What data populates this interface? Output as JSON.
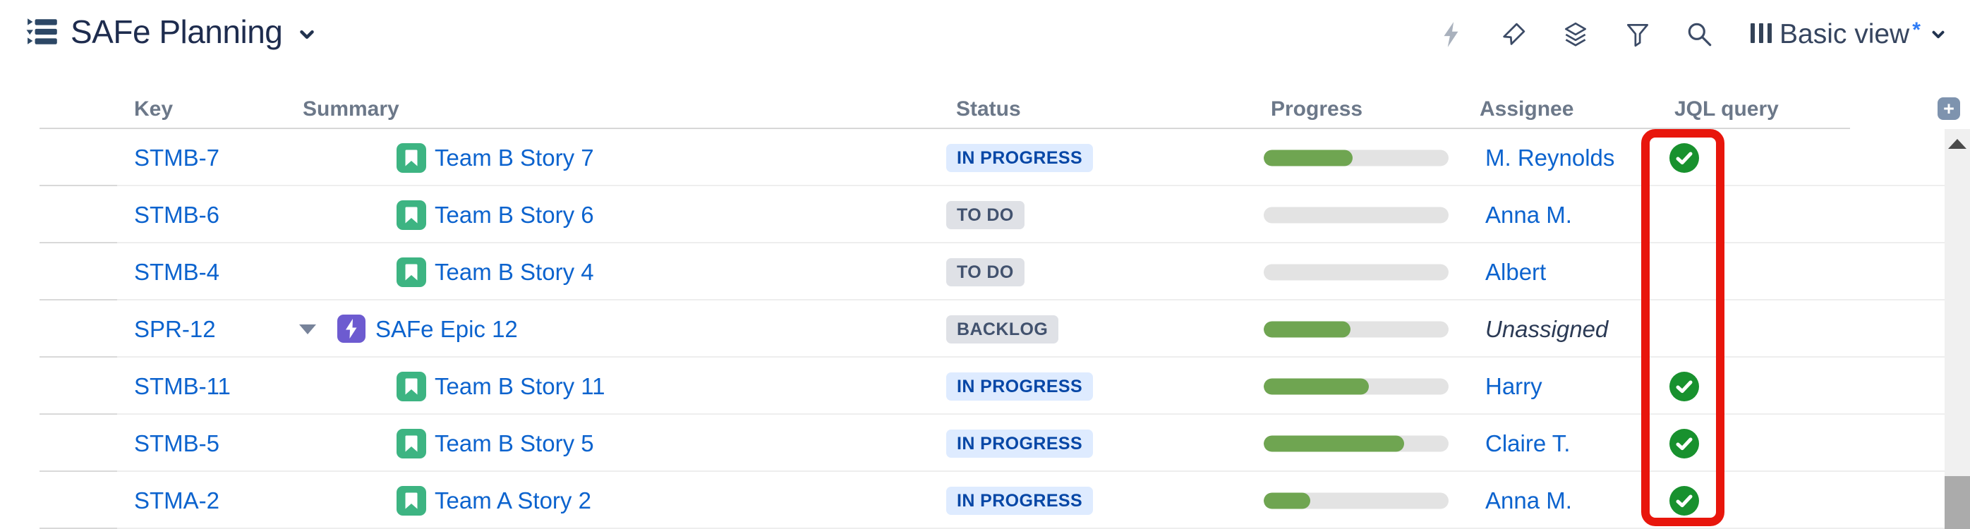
{
  "app": {
    "title": "SAFe Planning"
  },
  "toolbar": {
    "icon_names": [
      "automation-lightning-icon",
      "pin-icon",
      "layers-icon",
      "filter-icon",
      "search-icon",
      "columns-icon"
    ],
    "view_label": "Basic view",
    "view_modified_indicator": "*",
    "add_column_label": "+"
  },
  "table": {
    "columns": [
      "Key",
      "Summary",
      "Status",
      "Progress",
      "Assignee",
      "JQL query"
    ],
    "rows": [
      {
        "key": "STMB-7",
        "type": "story",
        "summary": "Team B Story 7",
        "status": "IN PROGRESS",
        "status_color": "blue",
        "progress_percent": 48,
        "assignee": "M. Reynolds",
        "assignee_is_link": true,
        "jql_match": true,
        "has_expander": false
      },
      {
        "key": "STMB-6",
        "type": "story",
        "summary": "Team B Story 6",
        "status": "TO DO",
        "status_color": "grey",
        "progress_percent": 0,
        "assignee": "Anna M.",
        "assignee_is_link": true,
        "jql_match": false,
        "has_expander": false
      },
      {
        "key": "STMB-4",
        "type": "story",
        "summary": "Team B Story 4",
        "status": "TO DO",
        "status_color": "grey",
        "progress_percent": 0,
        "assignee": "Albert",
        "assignee_is_link": true,
        "jql_match": false,
        "has_expander": false
      },
      {
        "key": "SPR-12",
        "type": "epic",
        "summary": "SAFe Epic 12",
        "status": "BACKLOG",
        "status_color": "grey",
        "progress_percent": 47,
        "assignee": "Unassigned",
        "assignee_is_link": false,
        "jql_match": false,
        "has_expander": true
      },
      {
        "key": "STMB-11",
        "type": "story",
        "summary": "Team B Story 11",
        "status": "IN PROGRESS",
        "status_color": "blue",
        "progress_percent": 57,
        "assignee": "Harry",
        "assignee_is_link": true,
        "jql_match": true,
        "has_expander": false
      },
      {
        "key": "STMB-5",
        "type": "story",
        "summary": "Team B Story 5",
        "status": "IN PROGRESS",
        "status_color": "blue",
        "progress_percent": 76,
        "assignee": "Claire T.",
        "assignee_is_link": true,
        "jql_match": true,
        "has_expander": false
      },
      {
        "key": "STMA-2",
        "type": "story",
        "summary": "Team A Story 2",
        "status": "IN PROGRESS",
        "status_color": "blue",
        "progress_percent": 25,
        "assignee": "Anna M.",
        "assignee_is_link": true,
        "jql_match": true,
        "has_expander": false
      }
    ]
  },
  "annotation": {
    "description": "red highlight box around JQL query column checkmarks",
    "color": "#E8160C"
  },
  "colors": {
    "link": "#0C63CE",
    "title_text": "#1E2C4E",
    "header_label": "#6C7889",
    "status_inprogress_bg": "#DEEBFF",
    "status_inprogress_text": "#0747A6",
    "status_grey_bg": "#DFE1E6",
    "status_grey_text": "#42526E",
    "progress_fill": "#6FA551",
    "progress_track": "#E3E3E3",
    "jql_check_green": "#18912E",
    "story_icon_green": "#3DB482",
    "epic_icon_purple": "#6D5BD0"
  }
}
